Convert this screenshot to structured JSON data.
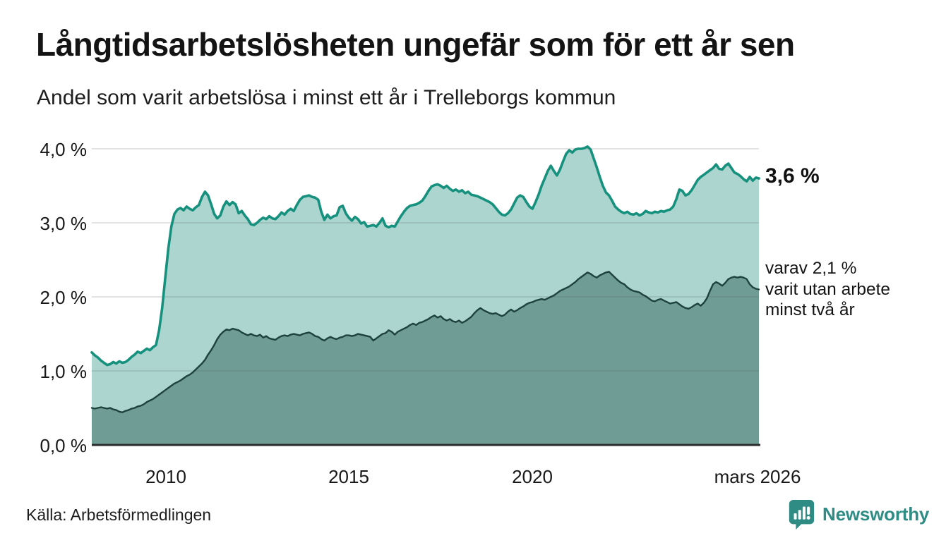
{
  "chart_data": {
    "type": "area",
    "title": "Långtidsarbetslösheten ungefär som för ett år sen",
    "subtitle": "Andel som varit arbetslösa i minst ett år i Trelleborgs kommun",
    "unit": "%",
    "frequency": "monthly",
    "x_start": "2008-01",
    "x_end": "2026-03",
    "x_ticks": [
      "2010",
      "2015",
      "2020",
      "mars 2026"
    ],
    "y_ticks": [
      "4,0 %",
      "3,0 %",
      "2,0 %",
      "1,0 %",
      "0,0 %"
    ],
    "ylim": [
      0,
      4.2
    ],
    "grid": true,
    "legend": "none",
    "grid_color": "#DCDEDD",
    "axis_line_color": "#2B2B2B",
    "series": [
      {
        "name": "Andel arbetslösa minst ett år",
        "line_color": "#16917E",
        "fill_color": "#ABD5CE",
        "latest_value": 3.6,
        "values": [
          1.25,
          1.21,
          1.18,
          1.14,
          1.11,
          1.08,
          1.09,
          1.12,
          1.1,
          1.13,
          1.11,
          1.12,
          1.15,
          1.19,
          1.22,
          1.26,
          1.24,
          1.27,
          1.3,
          1.28,
          1.32,
          1.35,
          1.55,
          1.85,
          2.25,
          2.65,
          2.95,
          3.12,
          3.18,
          3.2,
          3.17,
          3.22,
          3.19,
          3.17,
          3.21,
          3.24,
          3.35,
          3.42,
          3.37,
          3.25,
          3.12,
          3.06,
          3.1,
          3.22,
          3.29,
          3.24,
          3.28,
          3.25,
          3.13,
          3.16,
          3.1,
          3.05,
          2.98,
          2.97,
          3.0,
          3.04,
          3.07,
          3.05,
          3.09,
          3.06,
          3.05,
          3.09,
          3.14,
          3.11,
          3.16,
          3.19,
          3.16,
          3.24,
          3.31,
          3.35,
          3.36,
          3.37,
          3.35,
          3.34,
          3.31,
          3.15,
          3.04,
          3.11,
          3.06,
          3.09,
          3.1,
          3.21,
          3.23,
          3.13,
          3.07,
          3.03,
          3.08,
          3.05,
          2.99,
          3.01,
          2.95,
          2.96,
          2.97,
          2.95,
          3.0,
          3.06,
          2.96,
          2.94,
          2.96,
          2.95,
          3.02,
          3.09,
          3.15,
          3.2,
          3.23,
          3.24,
          3.25,
          3.27,
          3.3,
          3.36,
          3.43,
          3.49,
          3.51,
          3.52,
          3.5,
          3.47,
          3.5,
          3.46,
          3.43,
          3.45,
          3.42,
          3.44,
          3.4,
          3.42,
          3.38,
          3.37,
          3.36,
          3.34,
          3.32,
          3.3,
          3.28,
          3.25,
          3.2,
          3.15,
          3.11,
          3.1,
          3.13,
          3.18,
          3.26,
          3.34,
          3.37,
          3.35,
          3.28,
          3.22,
          3.19,
          3.28,
          3.38,
          3.5,
          3.6,
          3.7,
          3.77,
          3.7,
          3.64,
          3.72,
          3.83,
          3.93,
          3.98,
          3.95,
          3.99,
          4.0,
          4.0,
          4.01,
          4.03,
          3.99,
          3.87,
          3.75,
          3.62,
          3.5,
          3.41,
          3.37,
          3.3,
          3.22,
          3.18,
          3.15,
          3.13,
          3.15,
          3.12,
          3.11,
          3.13,
          3.1,
          3.12,
          3.16,
          3.14,
          3.13,
          3.15,
          3.14,
          3.16,
          3.15,
          3.17,
          3.18,
          3.22,
          3.32,
          3.45,
          3.43,
          3.37,
          3.39,
          3.44,
          3.51,
          3.58,
          3.62,
          3.65,
          3.68,
          3.71,
          3.74,
          3.79,
          3.73,
          3.72,
          3.77,
          3.8,
          3.74,
          3.68,
          3.66,
          3.63,
          3.59,
          3.56,
          3.62,
          3.57,
          3.61,
          3.6
        ]
      },
      {
        "name": "varav varit utan arbete minst två år",
        "line_color": "#1E423C",
        "fill_color": "#6F9C95",
        "latest_value": 2.1,
        "values": [
          0.5,
          0.49,
          0.5,
          0.51,
          0.5,
          0.49,
          0.5,
          0.48,
          0.47,
          0.45,
          0.44,
          0.46,
          0.47,
          0.49,
          0.5,
          0.52,
          0.53,
          0.55,
          0.58,
          0.6,
          0.62,
          0.65,
          0.68,
          0.71,
          0.74,
          0.77,
          0.8,
          0.83,
          0.85,
          0.87,
          0.9,
          0.93,
          0.95,
          0.98,
          1.02,
          1.06,
          1.1,
          1.15,
          1.22,
          1.28,
          1.35,
          1.43,
          1.49,
          1.53,
          1.56,
          1.55,
          1.57,
          1.56,
          1.55,
          1.52,
          1.5,
          1.48,
          1.5,
          1.48,
          1.47,
          1.49,
          1.45,
          1.47,
          1.44,
          1.43,
          1.42,
          1.45,
          1.47,
          1.48,
          1.47,
          1.49,
          1.5,
          1.49,
          1.48,
          1.5,
          1.51,
          1.52,
          1.5,
          1.47,
          1.46,
          1.43,
          1.41,
          1.44,
          1.46,
          1.44,
          1.43,
          1.45,
          1.46,
          1.48,
          1.48,
          1.47,
          1.48,
          1.5,
          1.49,
          1.48,
          1.47,
          1.46,
          1.41,
          1.44,
          1.47,
          1.5,
          1.51,
          1.55,
          1.53,
          1.49,
          1.53,
          1.55,
          1.57,
          1.59,
          1.62,
          1.64,
          1.62,
          1.65,
          1.66,
          1.68,
          1.7,
          1.73,
          1.75,
          1.72,
          1.74,
          1.7,
          1.68,
          1.7,
          1.67,
          1.66,
          1.68,
          1.65,
          1.67,
          1.7,
          1.73,
          1.78,
          1.82,
          1.85,
          1.82,
          1.8,
          1.78,
          1.77,
          1.78,
          1.76,
          1.74,
          1.76,
          1.8,
          1.83,
          1.8,
          1.82,
          1.85,
          1.87,
          1.9,
          1.92,
          1.93,
          1.95,
          1.96,
          1.97,
          1.96,
          1.98,
          2.0,
          2.02,
          2.05,
          2.08,
          2.1,
          2.12,
          2.14,
          2.17,
          2.2,
          2.24,
          2.27,
          2.3,
          2.33,
          2.31,
          2.28,
          2.26,
          2.29,
          2.31,
          2.33,
          2.34,
          2.3,
          2.26,
          2.22,
          2.19,
          2.17,
          2.13,
          2.1,
          2.08,
          2.07,
          2.06,
          2.03,
          2.01,
          1.98,
          1.95,
          1.94,
          1.96,
          1.97,
          1.95,
          1.93,
          1.91,
          1.92,
          1.93,
          1.9,
          1.87,
          1.85,
          1.84,
          1.86,
          1.89,
          1.91,
          1.88,
          1.92,
          1.98,
          2.08,
          2.17,
          2.2,
          2.18,
          2.15,
          2.19,
          2.24,
          2.26,
          2.27,
          2.26,
          2.27,
          2.26,
          2.24,
          2.17,
          2.13,
          2.11,
          2.1
        ]
      }
    ],
    "annotations": {
      "latest_total": "3,6 %",
      "breakdown_line1": "varav 2,1 %",
      "breakdown_line2": "varit utan arbete",
      "breakdown_line3": "minst två år"
    }
  },
  "footer": {
    "source": "Källa: Arbetsförmedlingen",
    "brand": "Newsworthy",
    "brand_color": "#2E8C84"
  }
}
